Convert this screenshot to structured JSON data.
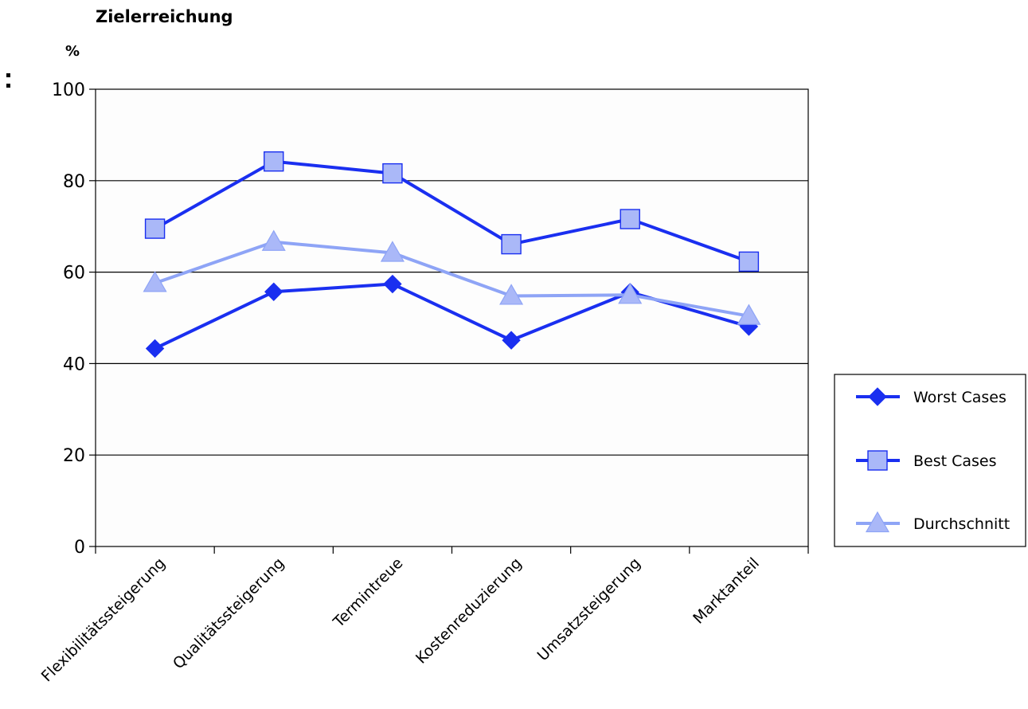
{
  "chart_data": {
    "type": "line",
    "title": "Zielerreichung",
    "ylabel": "%",
    "xlabel": "",
    "ylim": [
      0,
      100
    ],
    "yticks": [
      0,
      20,
      40,
      60,
      80,
      100
    ],
    "grid": true,
    "legend_position": "right",
    "categories": [
      "Flexibilitätssteigerung",
      "Qualitätssteigerung",
      "Termintreue",
      "Kostenreduzierung",
      "Umsatzsteigerung",
      "Marktanteil"
    ],
    "series": [
      {
        "name": "Worst Cases",
        "marker": "diamond",
        "color": "#1a2ff0",
        "values": [
          43.3,
          55.7,
          57.4,
          45.1,
          55.6,
          48.1
        ]
      },
      {
        "name": "Best Cases",
        "marker": "square",
        "color": "#1a2ff0",
        "marker_fill": "#aab8f8",
        "values": [
          69.5,
          84.2,
          81.6,
          66.1,
          71.6,
          62.3
        ]
      },
      {
        "name": "Durchschnitt",
        "marker": "triangle",
        "color": "#8ea4f6",
        "marker_fill": "#aab8f8",
        "values": [
          57.6,
          66.6,
          64.2,
          54.8,
          55.0,
          50.4
        ]
      }
    ]
  }
}
